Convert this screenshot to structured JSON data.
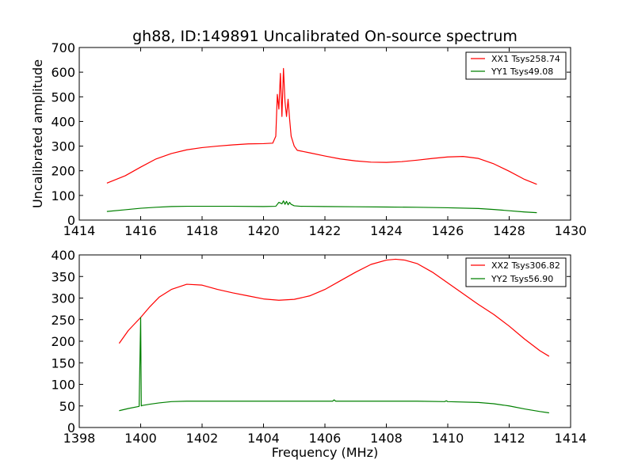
{
  "chart_data": [
    {
      "type": "line",
      "title": "gh88, ID:149891 Uncalibrated On-source spectrum",
      "xlabel": "",
      "ylabel": "Uncalibrated amplitude",
      "xlim": [
        1414,
        1430
      ],
      "ylim": [
        0,
        700
      ],
      "xticks": [
        1414,
        1416,
        1418,
        1420,
        1422,
        1424,
        1426,
        1428,
        1430
      ],
      "yticks": [
        0,
        100,
        200,
        300,
        400,
        500,
        600,
        700
      ],
      "legend_position": "top-right",
      "series": [
        {
          "name": "XX1 Tsys258.74",
          "color": "#ff0000",
          "x": [
            1414.9,
            1415.5,
            1416.0,
            1416.5,
            1417.0,
            1417.5,
            1418.0,
            1418.5,
            1419.0,
            1419.5,
            1420.0,
            1420.3,
            1420.4,
            1420.45,
            1420.5,
            1420.55,
            1420.6,
            1420.65,
            1420.7,
            1420.75,
            1420.8,
            1420.85,
            1420.9,
            1420.95,
            1421.0,
            1421.1,
            1421.3,
            1421.5,
            1422.0,
            1422.5,
            1423.0,
            1423.5,
            1424.0,
            1424.5,
            1425.0,
            1425.5,
            1426.0,
            1426.5,
            1427.0,
            1427.5,
            1428.0,
            1428.5,
            1428.9
          ],
          "y": [
            150,
            180,
            215,
            248,
            270,
            285,
            294,
            300,
            305,
            309,
            310,
            312,
            340,
            510,
            450,
            595,
            420,
            615,
            480,
            420,
            490,
            410,
            340,
            320,
            300,
            283,
            278,
            273,
            260,
            248,
            240,
            235,
            234,
            237,
            243,
            250,
            256,
            258,
            250,
            228,
            198,
            165,
            145
          ]
        },
        {
          "name": "YY1 Tsys49.08",
          "color": "#008000",
          "x": [
            1414.9,
            1415.5,
            1416.0,
            1416.5,
            1417.0,
            1417.5,
            1418.0,
            1419.0,
            1420.0,
            1420.4,
            1420.5,
            1420.6,
            1420.65,
            1420.7,
            1420.75,
            1420.8,
            1420.85,
            1420.9,
            1421.0,
            1421.2,
            1422.0,
            1423.0,
            1424.0,
            1425.0,
            1426.0,
            1427.0,
            1427.5,
            1428.0,
            1428.5,
            1428.9
          ],
          "y": [
            35,
            42,
            48,
            52,
            55,
            56,
            56,
            56,
            55,
            56,
            72,
            66,
            78,
            64,
            76,
            62,
            72,
            64,
            58,
            56,
            55,
            54,
            53,
            52,
            50,
            47,
            43,
            38,
            33,
            30
          ]
        }
      ]
    },
    {
      "type": "line",
      "title": "",
      "xlabel": "Frequency (MHz)",
      "ylabel": "",
      "xlim": [
        1398,
        1414
      ],
      "ylim": [
        0,
        400
      ],
      "xticks": [
        1398,
        1400,
        1402,
        1404,
        1406,
        1408,
        1410,
        1412,
        1414
      ],
      "yticks": [
        0,
        50,
        100,
        150,
        200,
        250,
        300,
        350,
        400
      ],
      "legend_position": "top-right",
      "series": [
        {
          "name": "XX2 Tsys306.82",
          "color": "#ff0000",
          "x": [
            1399.3,
            1399.6,
            1400.0,
            1400.3,
            1400.6,
            1401.0,
            1401.5,
            1402.0,
            1402.5,
            1403.0,
            1403.5,
            1404.0,
            1404.5,
            1405.0,
            1405.5,
            1406.0,
            1406.5,
            1407.0,
            1407.5,
            1408.0,
            1408.3,
            1408.6,
            1409.0,
            1409.5,
            1410.0,
            1410.5,
            1411.0,
            1411.5,
            1412.0,
            1412.5,
            1413.0,
            1413.3
          ],
          "y": [
            195,
            225,
            255,
            280,
            302,
            320,
            332,
            330,
            320,
            312,
            305,
            298,
            295,
            297,
            305,
            320,
            340,
            360,
            378,
            388,
            390,
            388,
            380,
            360,
            335,
            310,
            285,
            262,
            235,
            205,
            178,
            165
          ]
        },
        {
          "name": "YY2 Tsys56.90",
          "color": "#008000",
          "x": [
            1399.3,
            1399.6,
            1399.95,
            1400.0,
            1400.02,
            1400.05,
            1400.3,
            1400.6,
            1401.0,
            1401.5,
            1402.0,
            1403.0,
            1404.0,
            1405.0,
            1406.0,
            1406.25,
            1406.3,
            1406.35,
            1407.0,
            1408.0,
            1409.0,
            1409.9,
            1409.95,
            1410.0,
            1411.0,
            1411.5,
            1412.0,
            1412.5,
            1413.0,
            1413.3
          ],
          "y": [
            39,
            44,
            49,
            255,
            50,
            51,
            54,
            57,
            60,
            61,
            61,
            61,
            61,
            61,
            61,
            61,
            64,
            61,
            61,
            61,
            61,
            60,
            62,
            60,
            58,
            55,
            50,
            43,
            37,
            34
          ]
        }
      ]
    }
  ]
}
